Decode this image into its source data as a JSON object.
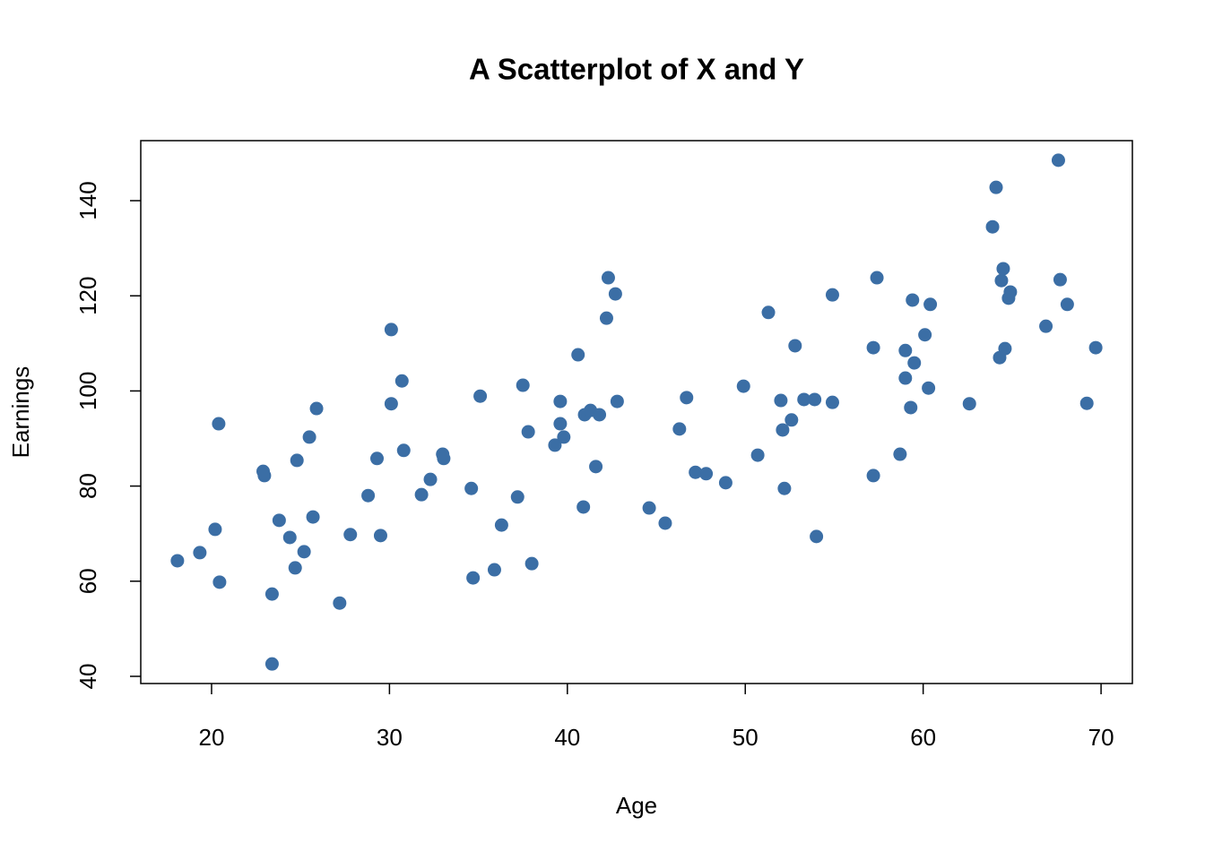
{
  "chart_data": {
    "type": "scatter",
    "title": "A Scatterplot of X and Y",
    "x_label": "Age",
    "y_label": "Earnings",
    "color": "#3b6ea5",
    "xlim": [
      16.02,
      71.76
    ],
    "ylim": [
      38.49,
      152.62
    ],
    "xticks": [
      20,
      30,
      40,
      50,
      60,
      70
    ],
    "yticks": [
      40,
      60,
      80,
      100,
      120,
      140
    ],
    "x": [
      18.08,
      19.34,
      20.2,
      20.4,
      20.45,
      22.9,
      22.97,
      23.4,
      23.4,
      23.8,
      24.4,
      24.7,
      24.8,
      25.2,
      25.5,
      25.7,
      25.9,
      27.2,
      27.8,
      28.8,
      29.3,
      29.5,
      30.1,
      30.1,
      30.7,
      30.8,
      31.8,
      32.3,
      32.99,
      33.05,
      34.6,
      34.7,
      35.1,
      35.9,
      36.3,
      37.2,
      37.5,
      37.8,
      38.0,
      39.3,
      39.6,
      39.6,
      39.8,
      40.6,
      40.9,
      40.97,
      41.3,
      41.6,
      41.8,
      42.2,
      42.3,
      42.7,
      42.8,
      44.6,
      45.5,
      46.3,
      46.7,
      47.2,
      47.8,
      48.9,
      49.9,
      50.7,
      51.3,
      52.0,
      52.1,
      52.2,
      52.6,
      52.8,
      53.3,
      53.9,
      54.0,
      54.9,
      54.9,
      57.2,
      57.2,
      57.4,
      58.7,
      59.0,
      59.0,
      59.3,
      59.4,
      59.5,
      60.1,
      60.3,
      60.4,
      62.6,
      63.9,
      64.1,
      64.3,
      64.4,
      64.5,
      64.6,
      64.8,
      64.9,
      66.9,
      67.6,
      67.7,
      68.1,
      69.2,
      69.7
    ],
    "values": [
      64.3,
      66.0,
      70.9,
      93.1,
      59.8,
      83.1,
      82.2,
      57.3,
      42.6,
      72.8,
      69.2,
      62.8,
      85.4,
      66.2,
      90.3,
      73.5,
      96.3,
      55.4,
      69.8,
      78.0,
      85.8,
      69.6,
      97.3,
      112.9,
      102.1,
      87.5,
      78.2,
      81.4,
      86.7,
      85.8,
      79.5,
      60.7,
      98.9,
      62.4,
      71.8,
      77.7,
      101.2,
      91.4,
      63.7,
      88.6,
      93.1,
      97.8,
      90.3,
      107.6,
      75.6,
      95.0,
      95.9,
      84.1,
      95.0,
      115.3,
      123.8,
      120.4,
      97.8,
      75.4,
      72.2,
      92.0,
      98.6,
      82.9,
      82.6,
      80.7,
      101.0,
      86.5,
      116.5,
      98.0,
      91.8,
      79.5,
      93.9,
      109.5,
      98.2,
      98.2,
      69.4,
      120.2,
      97.6,
      82.2,
      109.1,
      123.8,
      86.7,
      108.5,
      102.7,
      96.5,
      119.1,
      105.9,
      111.8,
      100.6,
      118.2,
      97.3,
      134.5,
      142.8,
      107.0,
      123.2,
      125.7,
      108.9,
      119.5,
      120.8,
      113.6,
      148.5,
      123.4,
      118.2,
      97.4,
      109.1
    ]
  }
}
